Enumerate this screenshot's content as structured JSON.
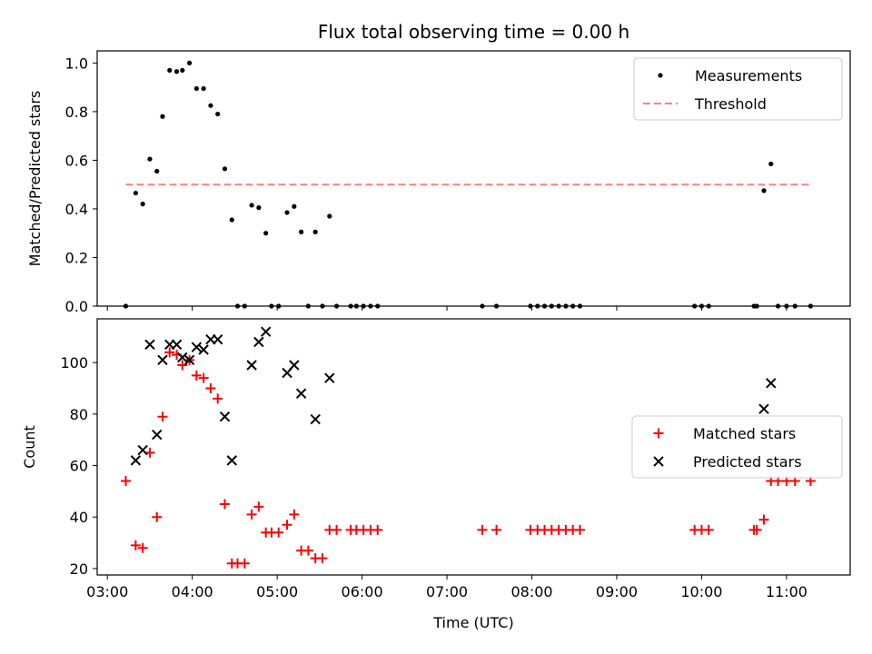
{
  "figure": {
    "title": "Flux total observing time = 0.00 h",
    "xlabel": "Time (UTC)"
  },
  "chart_data": [
    {
      "type": "scatter",
      "ylabel": "Matched/Predicted stars",
      "ylim": [
        0,
        1.05
      ],
      "yticks": [
        "0.0",
        "0.2",
        "0.4",
        "0.6",
        "0.8",
        "1.0"
      ],
      "xlim_hours": [
        2.88,
        11.75
      ],
      "xticks": [
        "03:00",
        "04:00",
        "05:00",
        "06:00",
        "07:00",
        "08:00",
        "09:00",
        "10:00",
        "11:00"
      ],
      "show_xticklabels": false,
      "legend_position": "upper right",
      "series": [
        {
          "name": "Measurements",
          "marker": "dot",
          "color": "#000000",
          "points": [
            [
              "03:13",
              0.0
            ],
            [
              "03:20",
              0.465
            ],
            [
              "03:25",
              0.42
            ],
            [
              "03:30",
              0.605
            ],
            [
              "03:35",
              0.555
            ],
            [
              "03:39",
              0.78
            ],
            [
              "03:44",
              0.97
            ],
            [
              "03:49",
              0.965
            ],
            [
              "03:53",
              0.97
            ],
            [
              "03:58",
              1.0
            ],
            [
              "04:03",
              0.895
            ],
            [
              "04:08",
              0.895
            ],
            [
              "04:13",
              0.825
            ],
            [
              "04:18",
              0.79
            ],
            [
              "04:23",
              0.565
            ],
            [
              "04:28",
              0.355
            ],
            [
              "04:32",
              0.0
            ],
            [
              "04:37",
              0.0
            ],
            [
              "04:42",
              0.415
            ],
            [
              "04:47",
              0.405
            ],
            [
              "04:52",
              0.3
            ],
            [
              "04:56",
              0.0
            ],
            [
              "05:01",
              0.0
            ],
            [
              "05:07",
              0.385
            ],
            [
              "05:12",
              0.41
            ],
            [
              "05:17",
              0.305
            ],
            [
              "05:22",
              0.0
            ],
            [
              "05:27",
              0.305
            ],
            [
              "05:32",
              0.0
            ],
            [
              "05:37",
              0.37
            ],
            [
              "05:42",
              0.0
            ],
            [
              "05:52",
              0.0
            ],
            [
              "05:56",
              0.0
            ],
            [
              "06:01",
              0.0
            ],
            [
              "06:06",
              0.0
            ],
            [
              "06:11",
              0.0
            ],
            [
              "07:25",
              0.0
            ],
            [
              "07:35",
              0.0
            ],
            [
              "07:59",
              0.0
            ],
            [
              "08:04",
              0.0
            ],
            [
              "08:09",
              0.0
            ],
            [
              "08:14",
              0.0
            ],
            [
              "08:19",
              0.0
            ],
            [
              "08:24",
              0.0
            ],
            [
              "08:29",
              0.0
            ],
            [
              "08:34",
              0.0
            ],
            [
              "09:55",
              0.0
            ],
            [
              "10:00",
              0.0
            ],
            [
              "10:05",
              0.0
            ],
            [
              "10:37",
              0.0
            ],
            [
              "10:39",
              0.0
            ],
            [
              "10:44",
              0.475
            ],
            [
              "10:49",
              0.585
            ],
            [
              "10:54",
              0.0
            ],
            [
              "11:00",
              0.0
            ],
            [
              "11:06",
              0.0
            ],
            [
              "11:17",
              0.0
            ]
          ]
        },
        {
          "name": "Threshold",
          "style": "dashed",
          "color": "#ff7f7f",
          "points": [
            [
              "03:13",
              0.5
            ],
            [
              "11:17",
              0.5
            ]
          ]
        }
      ]
    },
    {
      "type": "scatter",
      "ylabel": "Count",
      "ylim": [
        17.5,
        117
      ],
      "yticks": [
        "20",
        "40",
        "60",
        "80",
        "100"
      ],
      "xlim_hours": [
        2.88,
        11.75
      ],
      "xticks": [
        "03:00",
        "04:00",
        "05:00",
        "06:00",
        "07:00",
        "08:00",
        "09:00",
        "10:00",
        "11:00"
      ],
      "show_xticklabels": true,
      "legend_position": "center right",
      "series": [
        {
          "name": "Matched stars",
          "marker": "plus",
          "color": "#ff0000",
          "points": [
            [
              "03:13",
              54
            ],
            [
              "03:20",
              29
            ],
            [
              "03:25",
              28
            ],
            [
              "03:30",
              65
            ],
            [
              "03:35",
              40
            ],
            [
              "03:39",
              79
            ],
            [
              "03:44",
              104
            ],
            [
              "03:49",
              103
            ],
            [
              "03:53",
              99
            ],
            [
              "03:58",
              101
            ],
            [
              "04:03",
              95
            ],
            [
              "04:08",
              94
            ],
            [
              "04:13",
              90
            ],
            [
              "04:18",
              86
            ],
            [
              "04:23",
              45
            ],
            [
              "04:28",
              22
            ],
            [
              "04:32",
              22
            ],
            [
              "04:37",
              22
            ],
            [
              "04:42",
              41
            ],
            [
              "04:47",
              44
            ],
            [
              "04:52",
              34
            ],
            [
              "04:56",
              34
            ],
            [
              "05:01",
              34
            ],
            [
              "05:07",
              37
            ],
            [
              "05:12",
              41
            ],
            [
              "05:17",
              27
            ],
            [
              "05:22",
              27
            ],
            [
              "05:27",
              24
            ],
            [
              "05:32",
              24
            ],
            [
              "05:37",
              35
            ],
            [
              "05:42",
              35
            ],
            [
              "05:52",
              35
            ],
            [
              "05:56",
              35
            ],
            [
              "06:01",
              35
            ],
            [
              "06:06",
              35
            ],
            [
              "06:11",
              35
            ],
            [
              "07:25",
              35
            ],
            [
              "07:35",
              35
            ],
            [
              "07:59",
              35
            ],
            [
              "08:04",
              35
            ],
            [
              "08:09",
              35
            ],
            [
              "08:14",
              35
            ],
            [
              "08:19",
              35
            ],
            [
              "08:24",
              35
            ],
            [
              "08:29",
              35
            ],
            [
              "08:34",
              35
            ],
            [
              "09:55",
              35
            ],
            [
              "10:00",
              35
            ],
            [
              "10:05",
              35
            ],
            [
              "10:37",
              35
            ],
            [
              "10:39",
              35
            ],
            [
              "10:44",
              39
            ],
            [
              "10:49",
              54
            ],
            [
              "10:54",
              54
            ],
            [
              "11:00",
              54
            ],
            [
              "11:06",
              54
            ],
            [
              "11:17",
              54
            ]
          ]
        },
        {
          "name": "Predicted stars",
          "marker": "x",
          "color": "#000000",
          "points": [
            [
              "03:20",
              62
            ],
            [
              "03:25",
              66
            ],
            [
              "03:30",
              107
            ],
            [
              "03:35",
              72
            ],
            [
              "03:39",
              101
            ],
            [
              "03:44",
              107
            ],
            [
              "03:49",
              107
            ],
            [
              "03:53",
              102
            ],
            [
              "03:58",
              101
            ],
            [
              "04:03",
              106
            ],
            [
              "04:08",
              105
            ],
            [
              "04:13",
              109
            ],
            [
              "04:18",
              109
            ],
            [
              "04:23",
              79
            ],
            [
              "04:28",
              62
            ],
            [
              "04:42",
              99
            ],
            [
              "04:47",
              108
            ],
            [
              "04:52",
              112
            ],
            [
              "05:07",
              96
            ],
            [
              "05:12",
              99
            ],
            [
              "05:17",
              88
            ],
            [
              "05:27",
              78
            ],
            [
              "05:37",
              94
            ],
            [
              "10:44",
              82
            ],
            [
              "10:49",
              92
            ]
          ]
        }
      ]
    }
  ]
}
